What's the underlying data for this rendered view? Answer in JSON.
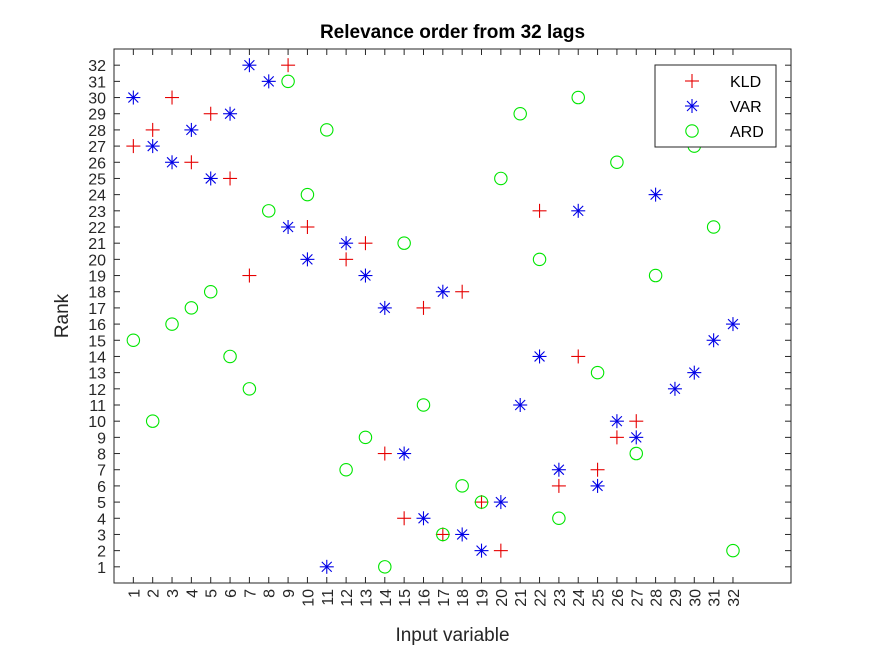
{
  "chart_data": {
    "type": "scatter",
    "title": "Relevance order from 32 lags",
    "xlabel": "Input variable",
    "ylabel": "Rank",
    "xlim": [
      0,
      35
    ],
    "ylim": [
      0,
      33
    ],
    "xticks": [
      1,
      2,
      3,
      4,
      5,
      6,
      7,
      8,
      9,
      10,
      11,
      12,
      13,
      14,
      15,
      16,
      17,
      18,
      19,
      20,
      21,
      22,
      23,
      24,
      25,
      26,
      27,
      28,
      29,
      30,
      31,
      32
    ],
    "yticks": [
      1,
      2,
      3,
      4,
      5,
      6,
      7,
      8,
      9,
      10,
      11,
      12,
      13,
      14,
      15,
      16,
      17,
      18,
      19,
      20,
      21,
      22,
      23,
      24,
      25,
      26,
      27,
      28,
      29,
      30,
      31,
      32
    ],
    "grid": false,
    "legend_position": "top-right",
    "series": [
      {
        "name": "KLD",
        "marker": "plus",
        "color": "#e60000",
        "points": [
          [
            1,
            27
          ],
          [
            2,
            28
          ],
          [
            3,
            30
          ],
          [
            4,
            26
          ],
          [
            5,
            29
          ],
          [
            6,
            25
          ],
          [
            7,
            19
          ],
          [
            9,
            32
          ],
          [
            10,
            22
          ],
          [
            12,
            20
          ],
          [
            13,
            21
          ],
          [
            14,
            8
          ],
          [
            15,
            4
          ],
          [
            16,
            17
          ],
          [
            17,
            3
          ],
          [
            18,
            18
          ],
          [
            19,
            5
          ],
          [
            20,
            2
          ],
          [
            22,
            23
          ],
          [
            23,
            6
          ],
          [
            24,
            14
          ],
          [
            25,
            7
          ],
          [
            26,
            9
          ],
          [
            27,
            10
          ]
        ]
      },
      {
        "name": "VAR",
        "marker": "asterisk",
        "color": "#0000e6",
        "points": [
          [
            1,
            30
          ],
          [
            2,
            27
          ],
          [
            3,
            26
          ],
          [
            4,
            28
          ],
          [
            5,
            25
          ],
          [
            6,
            29
          ],
          [
            7,
            32
          ],
          [
            8,
            31
          ],
          [
            9,
            22
          ],
          [
            10,
            20
          ],
          [
            11,
            1
          ],
          [
            12,
            21
          ],
          [
            13,
            19
          ],
          [
            14,
            17
          ],
          [
            15,
            8
          ],
          [
            16,
            4
          ],
          [
            17,
            18
          ],
          [
            18,
            3
          ],
          [
            19,
            2
          ],
          [
            20,
            5
          ],
          [
            21,
            11
          ],
          [
            22,
            14
          ],
          [
            23,
            7
          ],
          [
            24,
            23
          ],
          [
            25,
            6
          ],
          [
            26,
            10
          ],
          [
            27,
            9
          ],
          [
            28,
            24
          ],
          [
            29,
            12
          ],
          [
            30,
            13
          ],
          [
            31,
            15
          ],
          [
            32,
            16
          ]
        ]
      },
      {
        "name": "ARD",
        "marker": "circle",
        "color": "#00e600",
        "points": [
          [
            1,
            15
          ],
          [
            2,
            10
          ],
          [
            3,
            16
          ],
          [
            4,
            17
          ],
          [
            5,
            18
          ],
          [
            6,
            14
          ],
          [
            7,
            12
          ],
          [
            8,
            23
          ],
          [
            9,
            31
          ],
          [
            10,
            24
          ],
          [
            11,
            28
          ],
          [
            12,
            7
          ],
          [
            13,
            9
          ],
          [
            14,
            1
          ],
          [
            15,
            21
          ],
          [
            16,
            11
          ],
          [
            17,
            3
          ],
          [
            18,
            6
          ],
          [
            19,
            5
          ],
          [
            20,
            25
          ],
          [
            21,
            29
          ],
          [
            22,
            20
          ],
          [
            23,
            4
          ],
          [
            24,
            30
          ],
          [
            25,
            13
          ],
          [
            26,
            26
          ],
          [
            27,
            8
          ],
          [
            28,
            19
          ],
          [
            30,
            27
          ],
          [
            31,
            22
          ],
          [
            32,
            2
          ]
        ]
      }
    ]
  }
}
